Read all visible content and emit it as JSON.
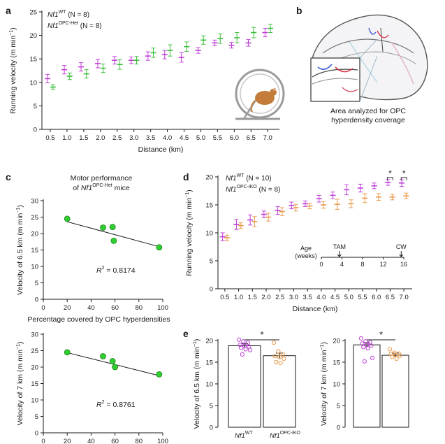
{
  "colors": {
    "wt_a": "#bf3fd6",
    "het": "#3cbf3c",
    "wt_d": "#bf3fd6",
    "ikO": "#e89a4a",
    "dot": "#2fcf2f",
    "axis": "#1a1a1a"
  },
  "panel_labels": {
    "a": "a",
    "b": "b",
    "c": "c",
    "d": "d",
    "e": "e"
  },
  "panel_b": {
    "caption_line1": "Area analyzed for OPC",
    "caption_line2": "hyperdensity coverage",
    "icon": "brain-section-icon"
  },
  "wheel_icon": "running-wheel-mouse-icon",
  "chart_data": [
    {
      "id": "a",
      "type": "scatter-errorbar",
      "xlabel": "Distance (km)",
      "ylabel": "Running velocity (m min",
      "ylabel_sup": "−1",
      "ylabel_end": ")",
      "ylim": [
        0,
        25
      ],
      "yticks": [
        0,
        5,
        10,
        15,
        20,
        25
      ],
      "xlim": [
        0.25,
        7.35
      ],
      "xticks": [
        0.5,
        1.0,
        1.5,
        2.0,
        2.5,
        3.0,
        3.5,
        4.0,
        4.5,
        5.0,
        5.5,
        6.0,
        6.5,
        7.0
      ],
      "xtick_labels": [
        "0.5",
        "1.0",
        "1.5",
        "2.0",
        "2.5",
        "3.0",
        "3.5",
        "4.0",
        "4.5",
        "5.0",
        "5.5",
        "6.0",
        "6.5",
        "7.0"
      ],
      "legend": [
        {
          "base": "Nf1",
          "sup": "WT",
          "suffix": " (N = 8)"
        },
        {
          "base": "Nf1",
          "sup": "OPC-Het",
          "suffix": " (N = 8)"
        }
      ],
      "series": [
        {
          "name": "Nf1 WT",
          "color_key": "wt_a",
          "x_offset": -0.08,
          "values": [
            10.8,
            12.7,
            13.3,
            14.0,
            14.7,
            14.7,
            15.6,
            15.9,
            15.3,
            16.8,
            18.4,
            17.9,
            18.4,
            20.6
          ],
          "err": [
            0.9,
            0.9,
            0.9,
            0.9,
            0.8,
            0.7,
            0.9,
            0.9,
            1.0,
            0.6,
            0.6,
            0.6,
            0.7,
            0.9
          ]
        },
        {
          "name": "Nf1 OPC-Het",
          "color_key": "het",
          "x_offset": 0.08,
          "values": [
            9.0,
            11.3,
            11.8,
            13.0,
            13.8,
            14.7,
            16.3,
            16.8,
            17.6,
            19.0,
            19.3,
            19.5,
            20.6,
            21.5
          ],
          "err": [
            0.5,
            0.7,
            0.9,
            0.9,
            1.0,
            0.8,
            1.0,
            1.2,
            1.0,
            0.9,
            1.0,
            1.1,
            1.1,
            0.9
          ]
        }
      ]
    },
    {
      "id": "c1",
      "type": "scatter",
      "title_line1": "Motor performance",
      "title_prefix": "of ",
      "title_base": "Nf1",
      "title_sup": "OPC-Het",
      "title_suffix": " mice",
      "xlabel": "Percentage covered by OPC hyperdensities",
      "ylabel": "Velocity of 6.5 km (m min",
      "ylabel_sup": "−1",
      "ylabel_end": ")",
      "xlim": [
        0,
        100
      ],
      "xticks": [
        0,
        20,
        40,
        60,
        80,
        100
      ],
      "ylim": [
        0,
        30
      ],
      "yticks": [
        0,
        5,
        10,
        15,
        20,
        25,
        30
      ],
      "x": [
        20,
        50,
        58,
        59,
        97
      ],
      "y": [
        24.5,
        21.8,
        22.0,
        17.8,
        15.8
      ],
      "fit": [
        [
          20,
          23.6
        ],
        [
          97,
          16.0
        ]
      ],
      "annotation_r": "R",
      "annotation_sup": "2",
      "annotation_val": " = 0.8174"
    },
    {
      "id": "c2",
      "type": "scatter",
      "xlabel": "",
      "ylabel": "Velocity of 7 km (m min",
      "ylabel_sup": "−1",
      "ylabel_end": ")",
      "xlim": [
        0,
        100
      ],
      "xticks": [
        0,
        20,
        40,
        60,
        80,
        100
      ],
      "ylim": [
        0,
        30
      ],
      "yticks": [
        0,
        5,
        10,
        15,
        20,
        25,
        30
      ],
      "x": [
        20,
        50,
        58,
        60,
        97
      ],
      "y": [
        24.5,
        23.3,
        21.8,
        20.0,
        17.8
      ],
      "fit": [
        [
          20,
          24.4
        ],
        [
          97,
          17.4
        ]
      ],
      "annotation_r": "R",
      "annotation_sup": "2",
      "annotation_val": " = 0.8761"
    },
    {
      "id": "d",
      "type": "scatter-errorbar",
      "xlabel": "Distance (km)",
      "ylabel": "Running velocity (m min",
      "ylabel_sup": "−1",
      "ylabel_end": ")",
      "ylim": [
        0,
        20
      ],
      "yticks": [
        0,
        5,
        10,
        15,
        20
      ],
      "xlim": [
        0.25,
        7.3
      ],
      "xticks": [
        0.5,
        1.0,
        1.5,
        2.0,
        2.5,
        3.0,
        3.5,
        4.0,
        4.5,
        5.0,
        5.5,
        6.0,
        6.5,
        7.0
      ],
      "xtick_labels": [
        "0.5",
        "1.0",
        "1.5",
        "2.0",
        "2.5",
        "3.0",
        "3.5",
        "4.0",
        "4.5",
        "5.0",
        "5.5",
        "6.0",
        "6.5",
        "7.0"
      ],
      "legend": [
        {
          "base": "Nf1",
          "sup": "WT",
          "suffix": " (N = 10)"
        },
        {
          "base": "Nf1",
          "sup": "OPC-iKO",
          "suffix": " (N = 8)"
        }
      ],
      "series": [
        {
          "name": "Nf1 WT",
          "color_key": "wt_d",
          "x_offset": -0.08,
          "values": [
            9.3,
            11.5,
            12.3,
            13.3,
            14.0,
            14.9,
            15.2,
            16.1,
            16.7,
            17.7,
            18.0,
            18.4,
            19.0,
            18.9
          ],
          "err": [
            0.7,
            0.9,
            0.9,
            0.6,
            0.7,
            0.6,
            0.5,
            0.6,
            0.6,
            0.9,
            0.7,
            0.5,
            0.5,
            0.6
          ]
        },
        {
          "name": "Nf1 OPC-iKO",
          "color_key": "ikO",
          "x_offset": 0.08,
          "values": [
            9.1,
            11.3,
            12.0,
            12.8,
            13.8,
            14.5,
            14.8,
            15.0,
            15.1,
            15.2,
            16.2,
            16.4,
            16.4,
            16.6
          ],
          "err": [
            0.5,
            0.5,
            0.9,
            0.7,
            0.7,
            0.6,
            0.5,
            0.6,
            0.9,
            0.7,
            0.8,
            0.6,
            0.5,
            0.5
          ]
        }
      ],
      "significance": [
        {
          "x": 6.5,
          "label": "*"
        },
        {
          "x": 7.0,
          "label": "*"
        }
      ],
      "inset": {
        "title_line1": "Age",
        "title_line2": "(weeks)",
        "ticks": [
          0,
          4,
          8,
          12,
          16
        ],
        "range": [
          0,
          16
        ],
        "events": [
          {
            "label": "TAM",
            "week": 3.5
          },
          {
            "label": "CW",
            "week": 15.5
          }
        ]
      }
    },
    {
      "id": "e1",
      "type": "bar",
      "ylabel": "Velocity of 6.5 km (m min",
      "ylabel_sup": "−1",
      "ylabel_end": ")",
      "ylim": [
        0,
        20
      ],
      "yticks": [
        0,
        5,
        10,
        15,
        20
      ],
      "categories": [
        {
          "base": "Nf1",
          "sup": "WT"
        },
        {
          "base": "Nf1",
          "sup": "OPC-iKO"
        }
      ],
      "values": [
        18.8,
        16.5
      ],
      "err": [
        0.5,
        0.6
      ],
      "points": [
        [
          20.2,
          19.8,
          19.5,
          19.0,
          18.8,
          18.6,
          18.3,
          18.0,
          17.8,
          16.8
        ],
        [
          19.5,
          17.5,
          16.8,
          16.4,
          16.2,
          15.8,
          15.0,
          14.8
        ]
      ],
      "significance": "*"
    },
    {
      "id": "e2",
      "type": "bar",
      "ylabel": "Velocity of 7 km (m min",
      "ylabel_sup": "−1",
      "ylabel_end": ")",
      "ylim": [
        0,
        20
      ],
      "yticks": [
        0,
        5,
        10,
        15,
        20
      ],
      "categories": [
        {
          "base": "",
          "sup": ""
        },
        {
          "base": "",
          "sup": ""
        }
      ],
      "values": [
        19.0,
        16.6
      ],
      "err": [
        0.5,
        0.5
      ],
      "points": [
        [
          20.5,
          19.8,
          19.6,
          19.3,
          19.0,
          18.8,
          18.5,
          18.2,
          16.0,
          15.2
        ],
        [
          18.0,
          17.2,
          17.0,
          16.9,
          16.7,
          16.5,
          16.2,
          15.8
        ]
      ],
      "significance": "*"
    }
  ]
}
